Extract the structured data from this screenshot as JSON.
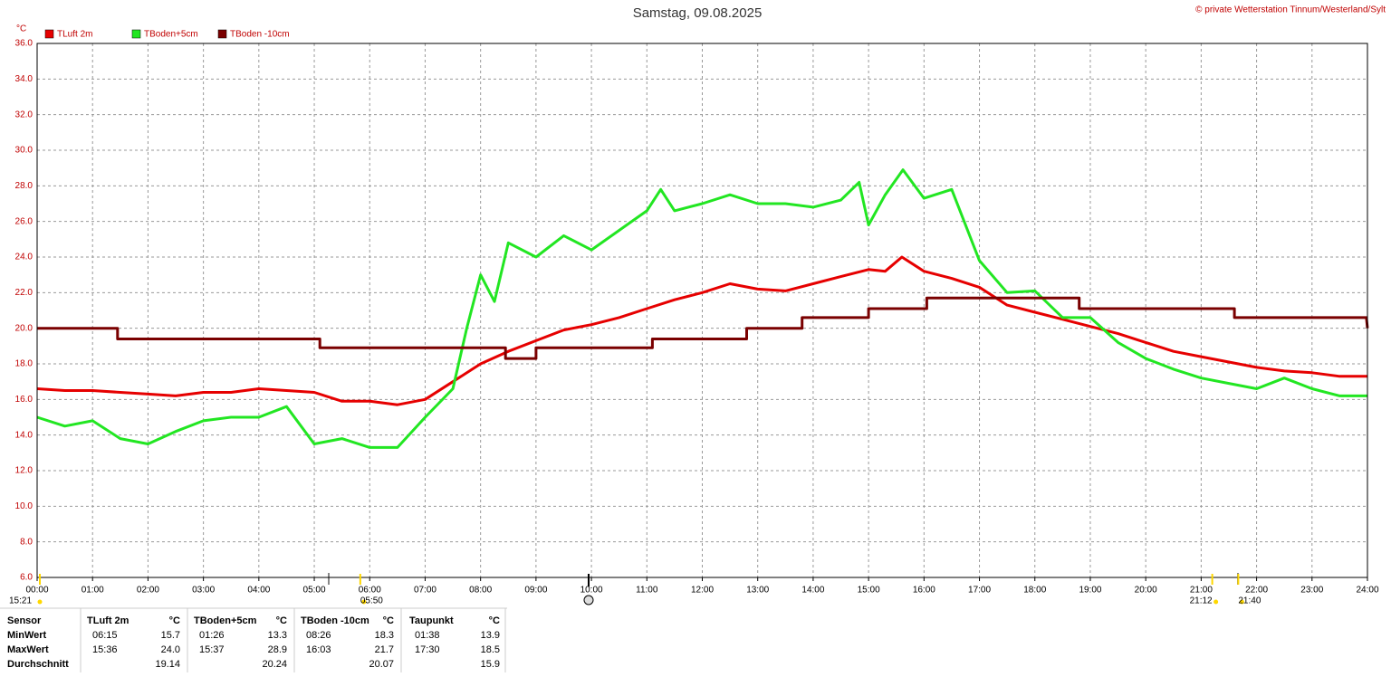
{
  "chart_data": {
    "type": "line",
    "title": "Samstag, 09.08.2025",
    "copyright": "© private Wetterstation Tinnum/Westerland/Sylt",
    "y_unit": "°C",
    "xlim": [
      0,
      24
    ],
    "ylim": [
      6,
      36
    ],
    "grid": true,
    "xticks": [
      {
        "value": 0,
        "label": "00:00"
      },
      {
        "value": 1,
        "label": "01:00"
      },
      {
        "value": 2,
        "label": "02:00"
      },
      {
        "value": 3,
        "label": "03:00"
      },
      {
        "value": 4,
        "label": "04:00"
      },
      {
        "value": 5,
        "label": "05:00"
      },
      {
        "value": 6,
        "label": "06:00"
      },
      {
        "value": 7,
        "label": "07:00"
      },
      {
        "value": 8,
        "label": "08:00"
      },
      {
        "value": 9,
        "label": "09:00"
      },
      {
        "value": 10,
        "label": "10:00"
      },
      {
        "value": 11,
        "label": "11:00"
      },
      {
        "value": 12,
        "label": "12:00"
      },
      {
        "value": 13,
        "label": "13:00"
      },
      {
        "value": 14,
        "label": "14:00"
      },
      {
        "value": 15,
        "label": "15:00"
      },
      {
        "value": 16,
        "label": "16:00"
      },
      {
        "value": 17,
        "label": "17:00"
      },
      {
        "value": 18,
        "label": "18:00"
      },
      {
        "value": 19,
        "label": "19:00"
      },
      {
        "value": 20,
        "label": "20:00"
      },
      {
        "value": 21,
        "label": "21:00"
      },
      {
        "value": 22,
        "label": "22:00"
      },
      {
        "value": 23,
        "label": "23:00"
      },
      {
        "value": 24,
        "label": "24:00"
      }
    ],
    "yticks": [
      {
        "value": 6,
        "label": "6.0"
      },
      {
        "value": 8,
        "label": "8.0"
      },
      {
        "value": 10,
        "label": "10.0"
      },
      {
        "value": 12,
        "label": "12.0"
      },
      {
        "value": 14,
        "label": "14.0"
      },
      {
        "value": 16,
        "label": "16.0"
      },
      {
        "value": 18,
        "label": "18.0"
      },
      {
        "value": 20,
        "label": "20.0"
      },
      {
        "value": 22,
        "label": "22.0"
      },
      {
        "value": 24,
        "label": "24.0"
      },
      {
        "value": 26,
        "label": "26.0"
      },
      {
        "value": 28,
        "label": "28.0"
      },
      {
        "value": 30,
        "label": "30.0"
      },
      {
        "value": 32,
        "label": "32.0"
      },
      {
        "value": 34,
        "label": "34.0"
      },
      {
        "value": 36,
        "label": "36.0"
      }
    ],
    "annotations": [
      {
        "label": "15:21",
        "x": 0
      },
      {
        "label": "05:50",
        "x": 5.83
      },
      {
        "label": "21:12",
        "x": 21.2
      },
      {
        "label": "21:40",
        "x": 21.67
      }
    ],
    "series": [
      {
        "name": "TLuft 2m",
        "color": "#e60000",
        "x": [
          0,
          0.5,
          1,
          1.5,
          2,
          2.5,
          3,
          3.5,
          4,
          4.5,
          5,
          5.5,
          6,
          6.5,
          7,
          7.5,
          8,
          8.5,
          9,
          9.5,
          10,
          10.5,
          11,
          11.5,
          12,
          12.5,
          13,
          13.5,
          14,
          14.5,
          15,
          15.3,
          15.6,
          16,
          16.5,
          17,
          17.5,
          18,
          18.5,
          19,
          19.5,
          20,
          20.5,
          21,
          21.5,
          22,
          22.5,
          23,
          23.5,
          24
        ],
        "values": [
          16.6,
          16.5,
          16.5,
          16.4,
          16.3,
          16.2,
          16.4,
          16.4,
          16.6,
          16.5,
          16.4,
          15.9,
          15.9,
          15.7,
          16.0,
          17.0,
          18.0,
          18.7,
          19.3,
          19.9,
          20.2,
          20.6,
          21.1,
          21.6,
          22.0,
          22.5,
          22.2,
          22.1,
          22.5,
          22.9,
          23.3,
          23.2,
          24.0,
          23.2,
          22.8,
          22.3,
          21.3,
          20.9,
          20.5,
          20.1,
          19.7,
          19.2,
          18.7,
          18.4,
          18.1,
          17.8,
          17.6,
          17.5,
          17.3,
          17.3
        ]
      },
      {
        "name": "TBoden+5cm",
        "color": "#22e622",
        "x": [
          0,
          0.5,
          1,
          1.5,
          2,
          2.5,
          3,
          3.5,
          4,
          4.5,
          5,
          5.5,
          6,
          6.5,
          7,
          7.5,
          7.75,
          8,
          8.25,
          8.5,
          9,
          9.5,
          10,
          10.5,
          11,
          11.25,
          11.5,
          12,
          12.5,
          13,
          13.5,
          14,
          14.5,
          14.83,
          15,
          15.3,
          15.62,
          16,
          16.5,
          17,
          17.5,
          18,
          18.5,
          19,
          19.5,
          20,
          20.5,
          21,
          21.5,
          22,
          22.5,
          23,
          23.5,
          24
        ],
        "values": [
          15.0,
          14.5,
          14.8,
          13.8,
          13.5,
          14.2,
          14.8,
          15.0,
          15.0,
          15.6,
          13.5,
          13.8,
          13.3,
          13.3,
          15.0,
          16.6,
          20.0,
          23.0,
          21.5,
          24.8,
          24.0,
          25.2,
          24.4,
          25.5,
          26.6,
          27.8,
          26.6,
          27.0,
          27.5,
          27.0,
          27.0,
          26.8,
          27.2,
          28.2,
          25.8,
          27.5,
          28.9,
          27.3,
          27.8,
          23.8,
          22.0,
          22.1,
          20.6,
          20.6,
          19.2,
          18.3,
          17.7,
          17.2,
          16.9,
          16.6,
          17.2,
          16.6,
          16.2,
          16.2
        ]
      },
      {
        "name": "TBoden -10cm",
        "color": "#7a0000",
        "x": [
          0,
          1.45,
          1.45,
          5.1,
          5.1,
          8.45,
          8.45,
          9.0,
          9.0,
          11.1,
          11.1,
          12.8,
          12.8,
          13.8,
          13.8,
          15.0,
          15.0,
          16.05,
          16.05,
          18.8,
          18.8,
          21.6,
          21.6,
          23.98,
          24
        ],
        "values": [
          20.0,
          20.0,
          19.4,
          19.4,
          18.9,
          18.9,
          18.3,
          18.3,
          18.9,
          18.9,
          19.4,
          19.4,
          20.0,
          20.0,
          20.6,
          20.6,
          21.1,
          21.1,
          21.7,
          21.7,
          21.1,
          21.1,
          20.6,
          20.6,
          20.0
        ]
      }
    ]
  },
  "table": {
    "headers": [
      "Sensor",
      "TLuft 2m",
      "°C",
      "TBoden+5cm",
      "°C",
      "TBoden -10cm",
      "°C",
      "Taupunkt",
      "°C"
    ],
    "rows": [
      [
        "MinWert",
        "06:15",
        "15.7",
        "01:26",
        "13.3",
        "08:26",
        "18.3",
        "01:38",
        "13.9"
      ],
      [
        "MaxWert",
        "15:36",
        "24.0",
        "15:37",
        "28.9",
        "16:03",
        "21.7",
        "17:30",
        "18.5"
      ],
      [
        "Durchschnitt",
        null,
        "19.14",
        null,
        "20.24",
        null,
        "20.07",
        null,
        "15.9"
      ]
    ]
  }
}
